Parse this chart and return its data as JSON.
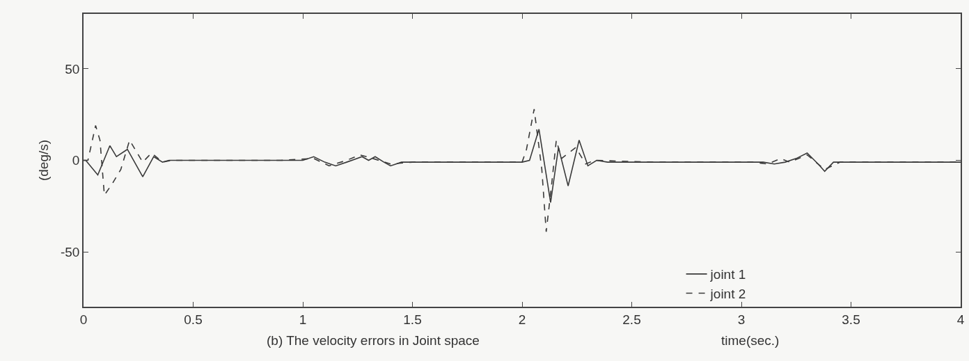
{
  "chart_data": {
    "type": "line",
    "xlabel": "time(sec.)",
    "ylabel": "(deg/s)",
    "annotations": [
      "(b) The velocity errors in Joint space"
    ],
    "xlim": [
      0,
      4
    ],
    "ylim": [
      -80,
      80
    ],
    "xticks": [
      0,
      0.5,
      1,
      1.5,
      2,
      2.5,
      3,
      3.5,
      4
    ],
    "yticks": [
      -50,
      0,
      50
    ],
    "grid": false,
    "legend": "bottom right",
    "series": [
      {
        "name": "joint 1",
        "color": "#3a3a3a",
        "line_style": "solid",
        "x": [
          0,
          0.01,
          0.065,
          0.12,
          0.15,
          0.2,
          0.27,
          0.32,
          0.36,
          0.39,
          0.6,
          0.9,
          1.0,
          1.05,
          1.1,
          1.15,
          1.2,
          1.27,
          1.3,
          1.33,
          1.37,
          1.4,
          1.45,
          1.5,
          1.7,
          2.0,
          2.034,
          2.077,
          2.13,
          2.166,
          2.21,
          2.26,
          2.3,
          2.34,
          2.39,
          2.6,
          3.0,
          3.1,
          3.15,
          3.2,
          3.25,
          3.3,
          3.35,
          3.38,
          3.42,
          3.5,
          3.8,
          4.0
        ],
        "values": [
          0,
          0,
          -8,
          8,
          2,
          6,
          -9,
          2,
          -1,
          0,
          0,
          0,
          0,
          2,
          -1,
          -3,
          -1,
          2,
          0,
          2,
          -1,
          -3,
          -1,
          -1,
          -1,
          -1,
          0,
          17,
          -23,
          7,
          -14,
          11,
          -3,
          0,
          -1,
          -1,
          -1,
          -1,
          -2,
          -1,
          1,
          4,
          -2,
          -6,
          -1,
          -1,
          -1,
          -1
        ]
      },
      {
        "name": "joint 2",
        "color": "#3a3a3a",
        "line_style": "dashed",
        "x": [
          0,
          0.02,
          0.055,
          0.075,
          0.095,
          0.13,
          0.17,
          0.21,
          0.27,
          0.31,
          0.36,
          0.4,
          0.9,
          1.05,
          1.12,
          1.2,
          1.26,
          1.32,
          1.4,
          1.5,
          1.9,
          2.0,
          2.02,
          2.055,
          2.09,
          2.11,
          2.134,
          2.156,
          2.18,
          2.245,
          2.29,
          2.33,
          2.6,
          3.05,
          3.12,
          3.18,
          3.22,
          3.3,
          3.38,
          3.45,
          3.8,
          4.0
        ],
        "values": [
          0,
          0,
          19,
          11,
          -19,
          -13,
          -5,
          11,
          -1,
          4,
          -1,
          0,
          0,
          1,
          -3,
          0,
          3,
          1,
          -2,
          -1,
          -1,
          -1,
          6,
          28,
          -5,
          -39,
          -14,
          11,
          1,
          7,
          -2,
          0,
          -1,
          -1,
          -2,
          1,
          -1,
          3,
          -5,
          -1,
          -1,
          -1
        ]
      }
    ]
  }
}
